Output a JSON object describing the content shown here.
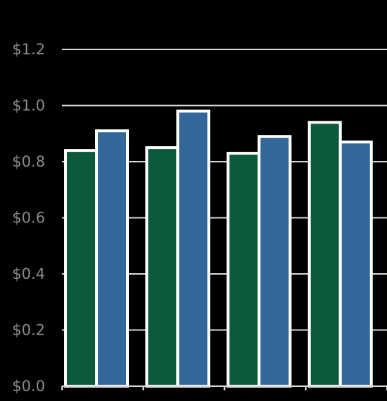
{
  "chart_data": {
    "type": "bar",
    "title": "",
    "xlabel": "",
    "ylabel": "",
    "categories": [
      "",
      "",
      "",
      ""
    ],
    "series": [
      {
        "values": [
          0.84,
          0.85,
          0.83,
          0.94
        ],
        "color": "#0b5a3c"
      },
      {
        "values": [
          0.91,
          0.98,
          0.89,
          0.87
        ],
        "color": "#336699"
      }
    ],
    "ylim": [
      0,
      1.2
    ],
    "yticks": [
      {
        "value": 0.0,
        "label": "$0.0"
      },
      {
        "value": 0.2,
        "label": "$0.2"
      },
      {
        "value": 0.4,
        "label": "$0.4"
      },
      {
        "value": 0.6,
        "label": "$0.6"
      },
      {
        "value": 0.8,
        "label": "$0.8"
      },
      {
        "value": 1.0,
        "label": "$1.0"
      },
      {
        "value": 1.2,
        "label": "$1.2"
      }
    ],
    "grid": true,
    "legend": "none"
  }
}
